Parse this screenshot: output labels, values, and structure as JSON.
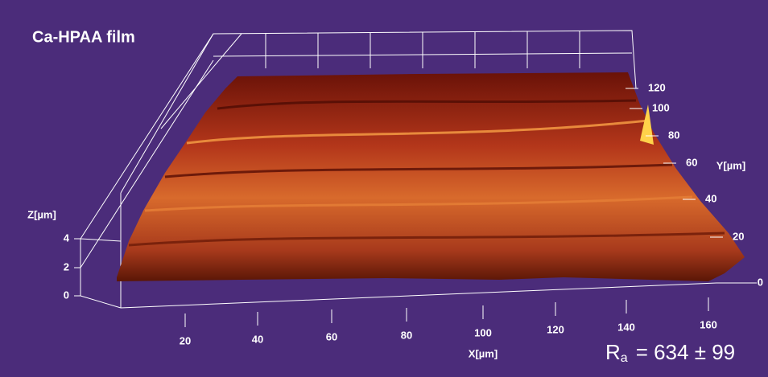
{
  "title": "Ca-HPAA film",
  "x_axis": {
    "label": "X[µm]",
    "ticks": [
      20,
      40,
      60,
      80,
      100,
      120,
      140,
      160
    ]
  },
  "y_axis": {
    "label": "Y[µm]",
    "ticks": [
      0,
      20,
      40,
      60,
      80,
      100,
      120
    ]
  },
  "z_axis": {
    "label": "Z[µm]",
    "ticks": [
      0,
      2,
      4
    ]
  },
  "roughness": {
    "symbol": "R",
    "subscript": "a",
    "text": "=  634  ±  99"
  }
}
